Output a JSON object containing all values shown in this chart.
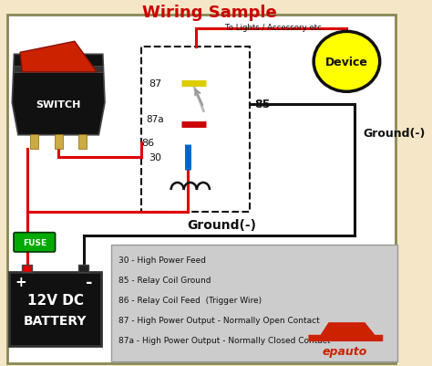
{
  "title": "Wiring Sample",
  "title_color": "#cc0000",
  "title_fontsize": 13,
  "bg_color": "#ffffff",
  "outer_bg": "#f5e6c8",
  "legend_lines": [
    "30 - High Power Feed",
    "85 - Relay Coil Ground",
    "86 - Relay Coil Feed  (Trigger Wire)",
    "87 - High Power Output - Normally Open Contact",
    "87a - High Power Output - Normally Closed Contact"
  ],
  "legend_bg": "#cccccc",
  "fuse_color": "#00aa00",
  "fuse_text": "FUSE",
  "battery_text1": "12V DC",
  "battery_text2": "BATTERY",
  "switch_text": "SWITCH",
  "device_text": "Device",
  "device_color": "#ffff00",
  "ground_label": "Ground(-)",
  "ground_label2": "Ground(-)",
  "wire_red": "#dd0000",
  "wire_black": "#111111",
  "to_lights_text": "To Lights / Accessory etc."
}
